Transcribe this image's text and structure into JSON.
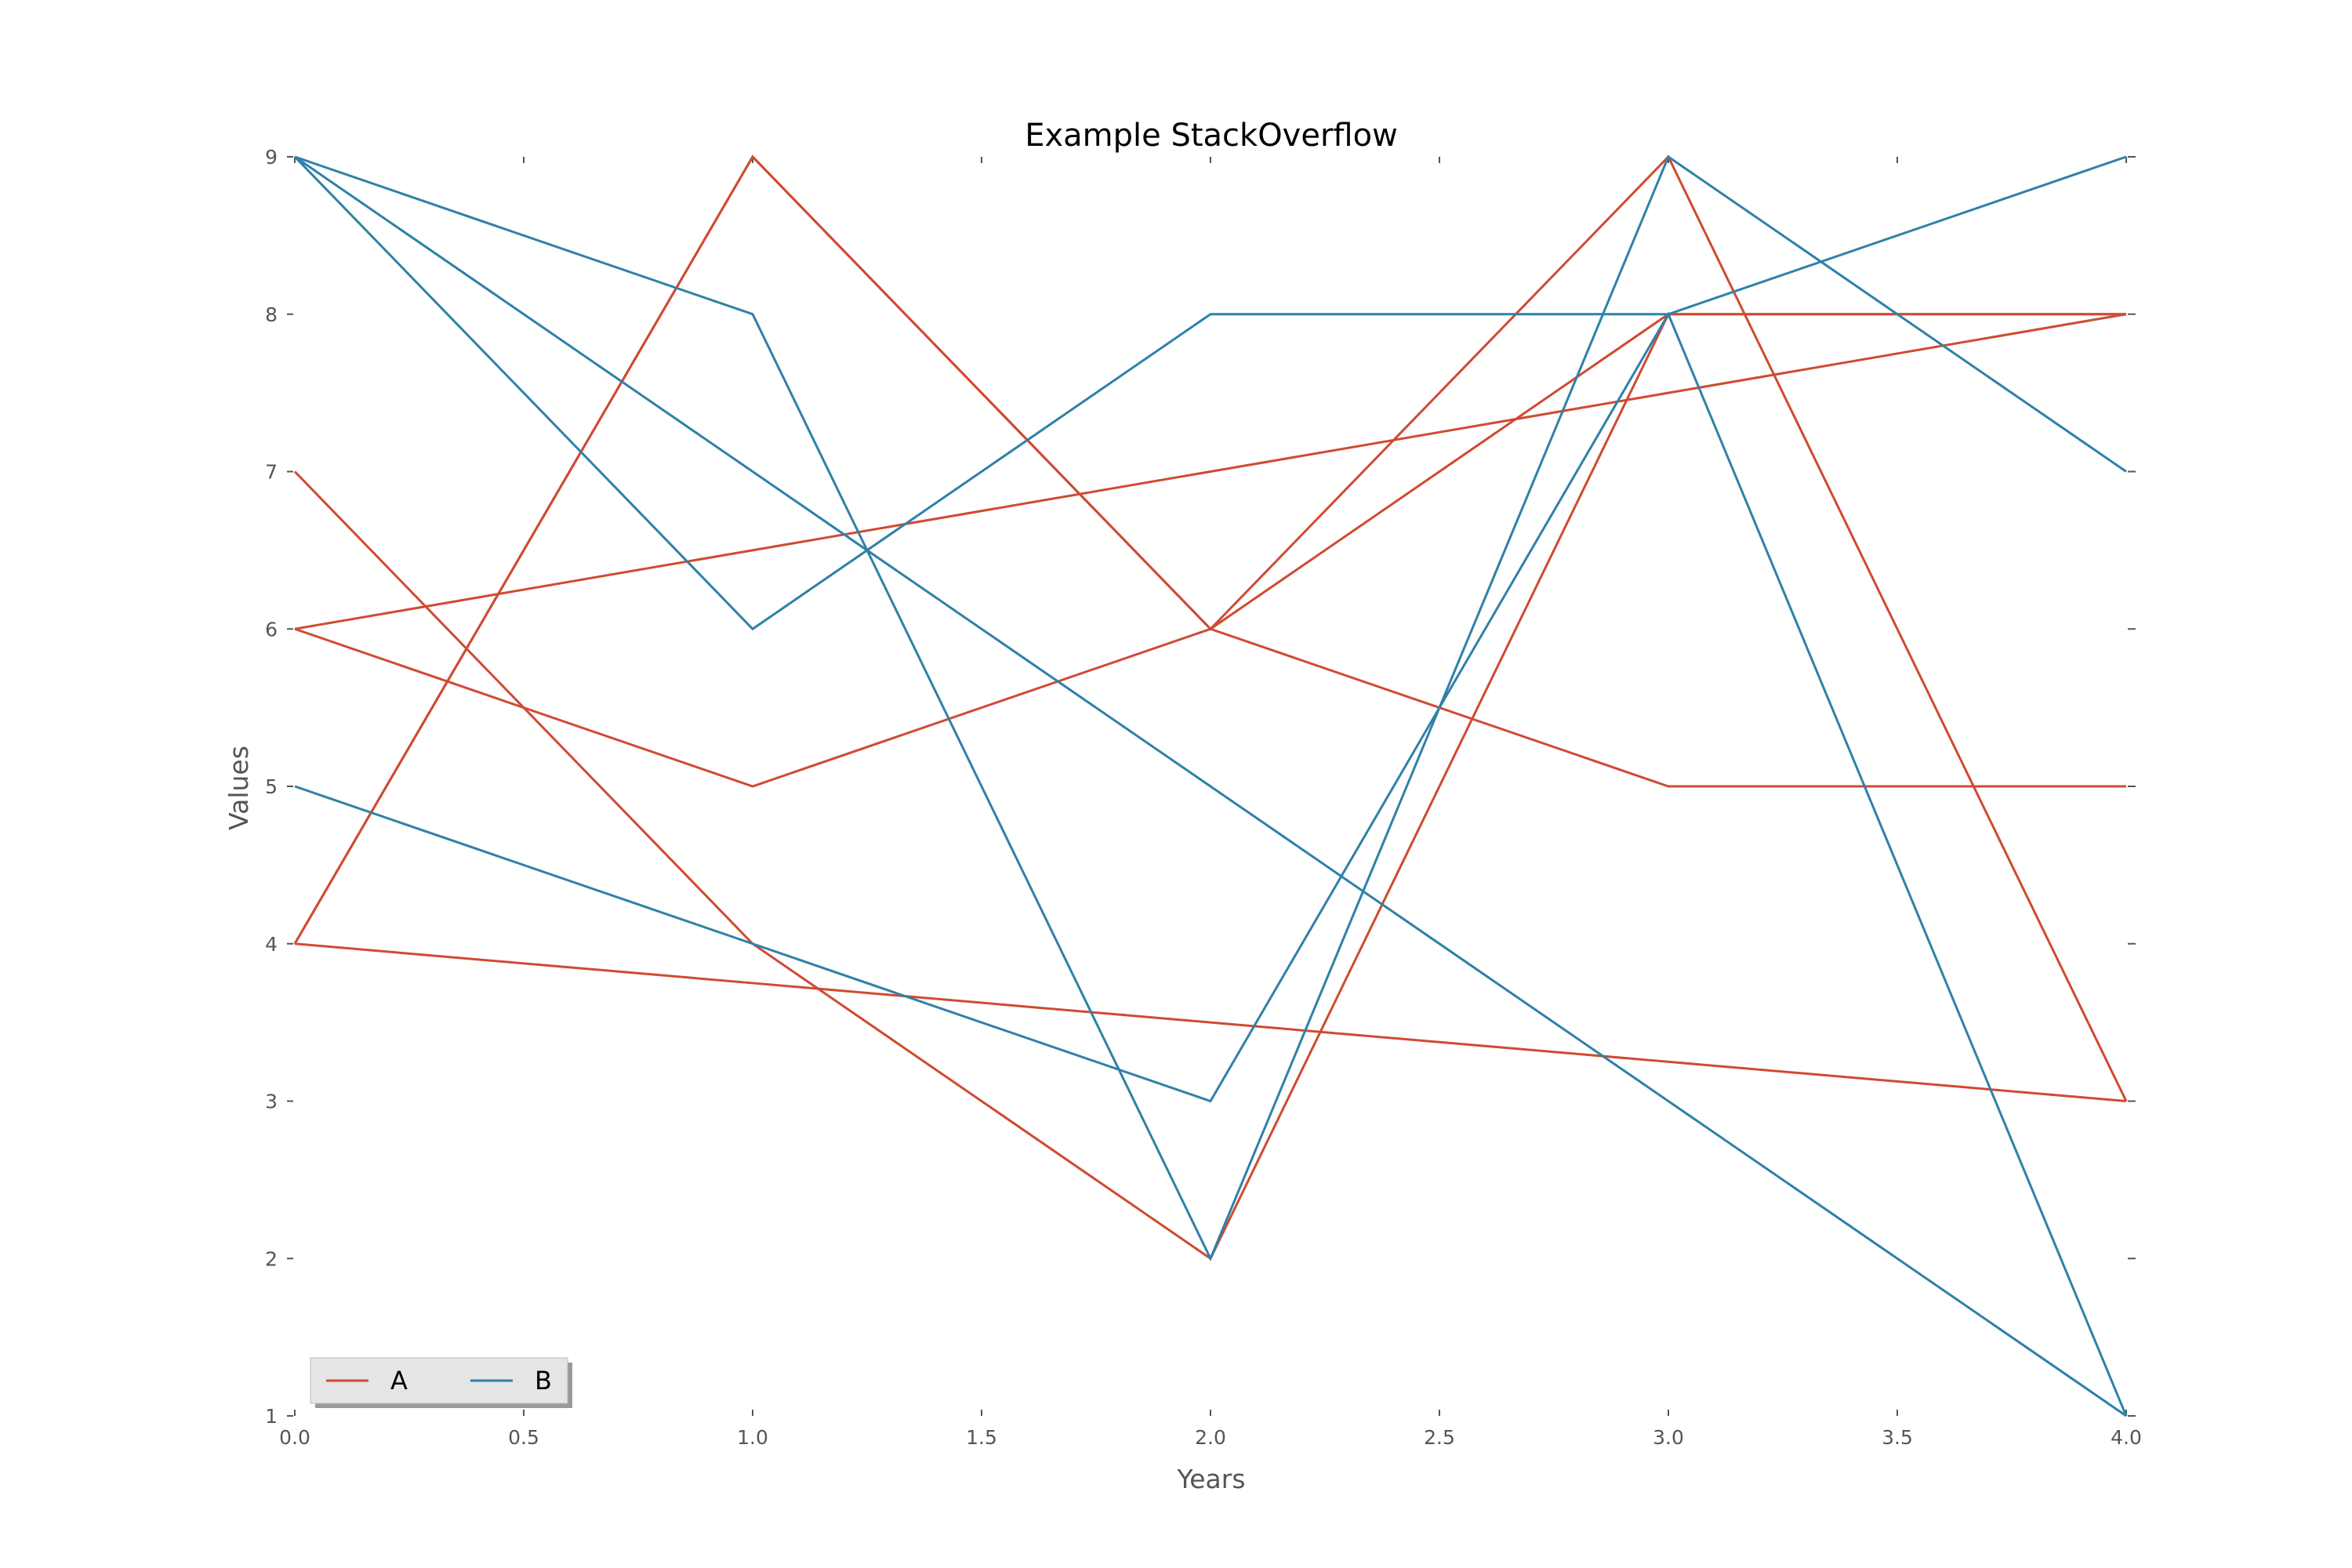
{
  "chart_data": {
    "type": "line",
    "title": "Example StackOverflow",
    "xlabel": "Years",
    "ylabel": "Values",
    "xlim": [
      0.0,
      4.0
    ],
    "ylim": [
      1,
      9
    ],
    "xticks": [
      "0.0",
      "0.5",
      "1.0",
      "1.5",
      "2.0",
      "2.5",
      "3.0",
      "3.5",
      "4.0"
    ],
    "yticks": [
      "1",
      "2",
      "3",
      "4",
      "5",
      "6",
      "7",
      "8",
      "9"
    ],
    "x": [
      0,
      1,
      2,
      3,
      4
    ],
    "grid": false,
    "legend_position": "lower-left",
    "legend": [
      {
        "label": "A",
        "color": "#d04a32"
      },
      {
        "label": "B",
        "color": "#2f81a8"
      }
    ],
    "series": [
      {
        "group": "A",
        "color": "#d04a32",
        "values": [
          7,
          4,
          2,
          8,
          8
        ]
      },
      {
        "group": "A",
        "color": "#d04a32",
        "values": [
          6,
          5,
          6,
          8,
          8
        ]
      },
      {
        "group": "A",
        "color": "#d04a32",
        "values": [
          4,
          9,
          6,
          5,
          5
        ]
      },
      {
        "group": "A",
        "color": "#d04a32",
        "values": [
          6,
          6.5,
          7,
          7.5,
          8
        ]
      },
      {
        "group": "A",
        "color": "#d04a32",
        "values": [
          4,
          3.75,
          3.5,
          3.25,
          3
        ]
      },
      {
        "group": "A",
        "color": "#d04a32",
        "values": [
          4,
          9,
          6,
          9,
          3
        ]
      },
      {
        "group": "B",
        "color": "#2f81a8",
        "values": [
          9,
          8,
          2,
          9,
          7
        ]
      },
      {
        "group": "B",
        "color": "#2f81a8",
        "values": [
          9,
          6,
          8,
          8,
          9
        ]
      },
      {
        "group": "B",
        "color": "#2f81a8",
        "values": [
          5,
          4,
          3,
          8,
          1
        ]
      },
      {
        "group": "B",
        "color": "#2f81a8",
        "values": [
          9,
          7,
          5,
          3,
          1
        ]
      }
    ]
  }
}
